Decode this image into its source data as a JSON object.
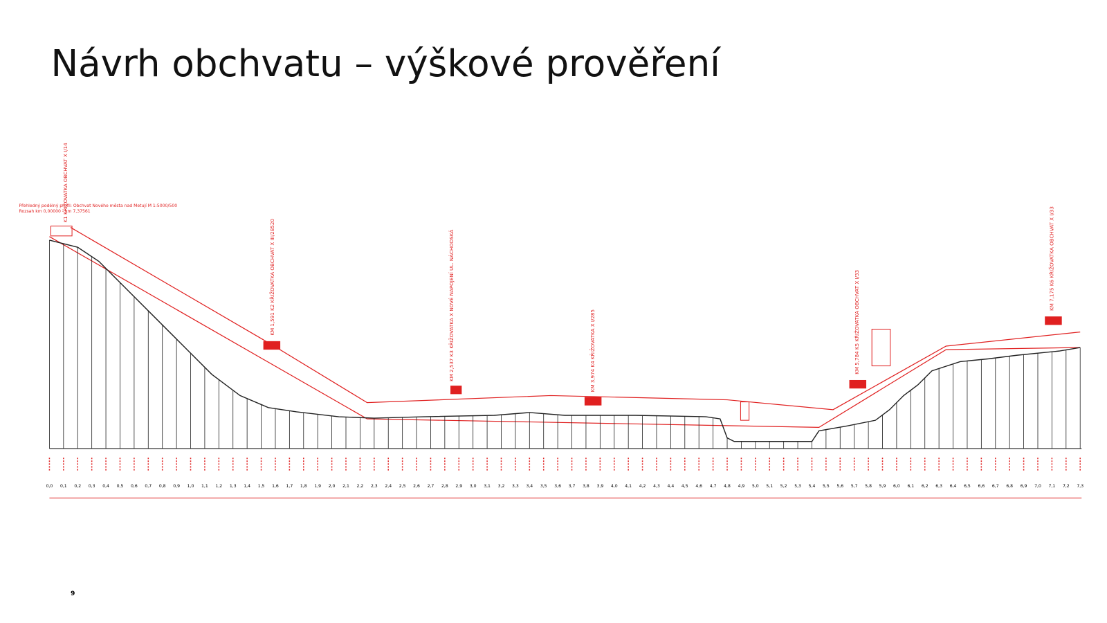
{
  "header": {
    "title": "Návrh obchvatu – výškové prověření"
  },
  "drawing": {
    "caption": [
      "Přehledný podélný profil: Obchvat Nového města nad Metují  M 1:5000/500",
      "Rozsah  km 0,00000 - km 7,37561"
    ],
    "crossings": [
      "K1 KŘIŽOVATKA OBCHVAT X I/14",
      "KM 1,591   K2 KŘIŽOVATKA OBCHVAT X III/28520",
      "KM 2,537   K3 KŘIŽOVATKA X NOVÉ NAPOJENÍ UL. NÁCHODSKÁ",
      "KM 3,974   K4 KŘIŽOVATKA X I/285",
      "KM 5,784   K5 KŘIŽOVATKA OBCHVAT X I/33",
      "KM 7,175   K6 KŘIŽOVATKA OBCHVAT X I/33"
    ],
    "stations": [
      "0,0",
      "0,1",
      "0,2",
      "0,3",
      "0,4",
      "0,5",
      "0,6",
      "0,7",
      "0,8",
      "0,9",
      "1,0",
      "1,1",
      "1,2",
      "1,3",
      "1,4",
      "1,5",
      "1,6",
      "1,7",
      "1,8",
      "1,9",
      "2,0",
      "2,1",
      "2,2",
      "2,3",
      "2,4",
      "2,5",
      "2,6",
      "2,7",
      "2,8",
      "2,9",
      "3,0",
      "3,1",
      "3,2",
      "3,3",
      "3,4",
      "3,5",
      "3,6",
      "3,7",
      "3,8",
      "3,9",
      "4,0",
      "4,1",
      "4,2",
      "4,3",
      "4,4",
      "4,5",
      "4,6",
      "4,7",
      "4,8",
      "4,9",
      "5,0",
      "5,1",
      "5,2",
      "5,3",
      "5,4",
      "5,5",
      "5,6",
      "5,7",
      "5,8",
      "5,9",
      "6,0",
      "6,1",
      "6,2",
      "6,3",
      "6,4",
      "6,5",
      "6,6",
      "6,7",
      "6,8",
      "6,9",
      "7,0",
      "7,1",
      "7,2",
      "7,3"
    ]
  },
  "footer": {
    "page_number": "9"
  }
}
